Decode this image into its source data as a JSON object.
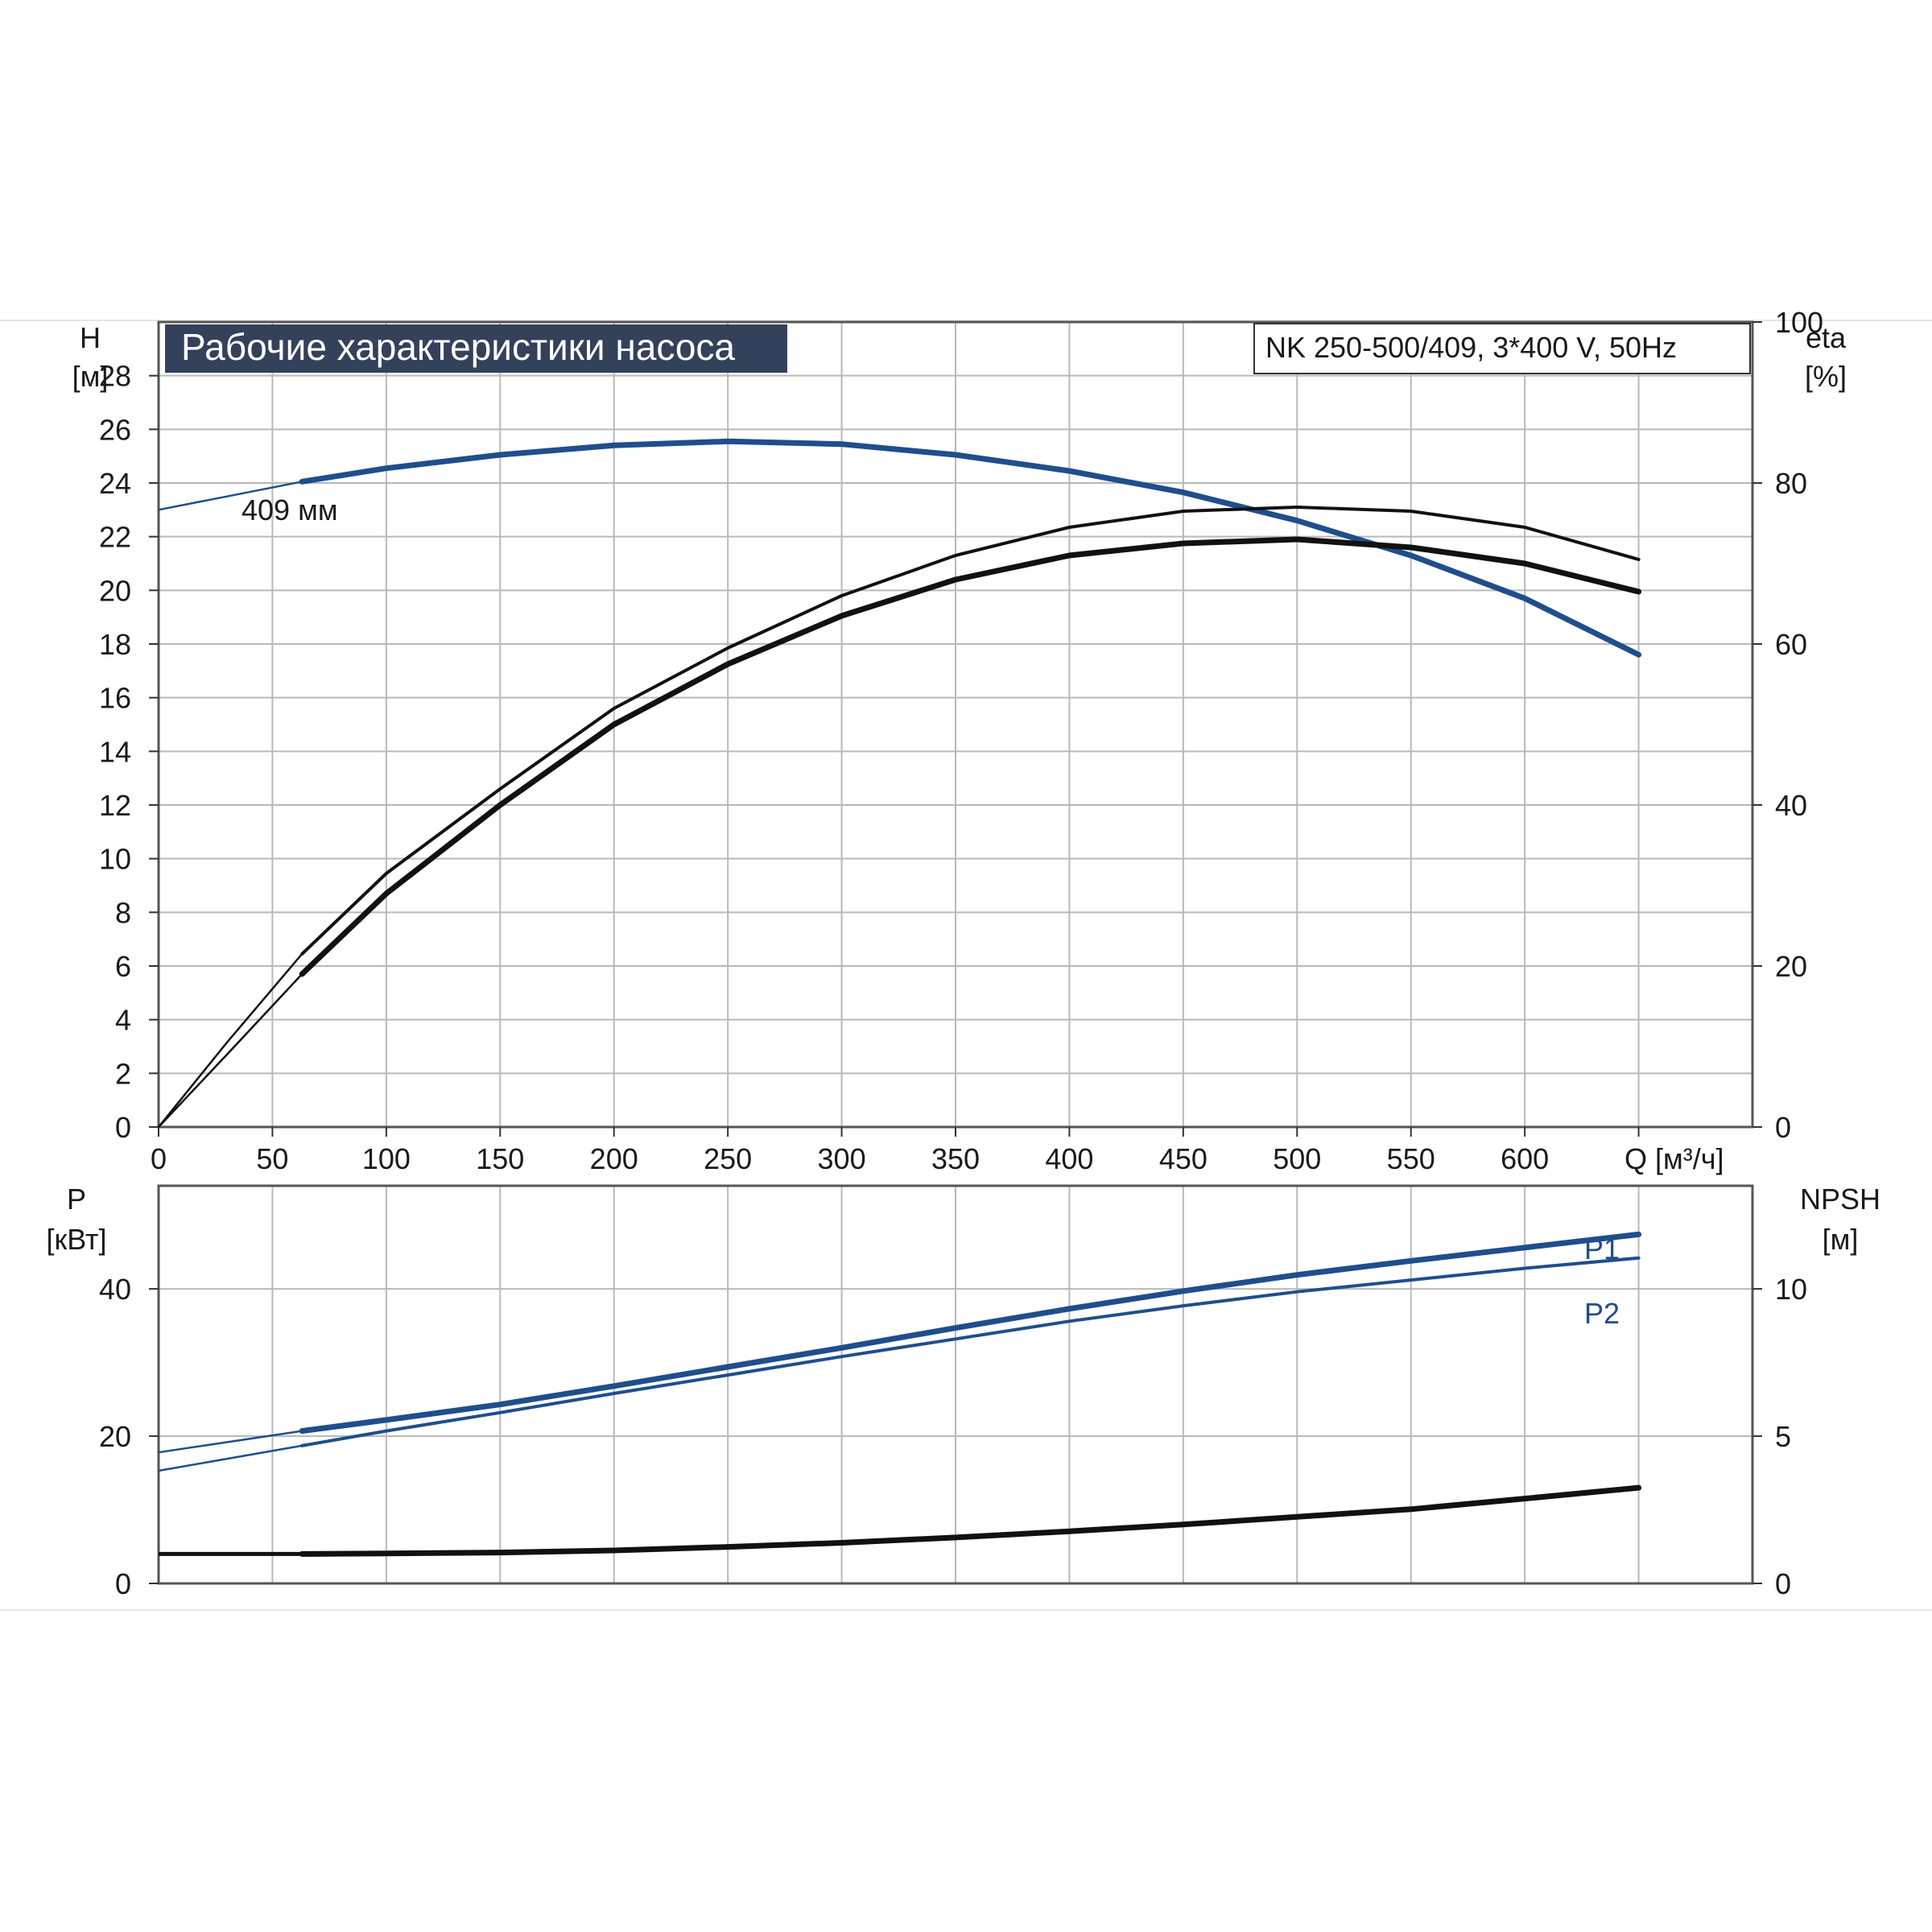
{
  "chart_data": [
    {
      "type": "line",
      "title": "Рабочие характеристики насоса",
      "subtitle": "NK 250-500/409, 3*400 V, 50Hz",
      "xlabel": "Q [м³/ч]",
      "ylabel_left": [
        "H",
        "[м]"
      ],
      "ylabel_right": [
        "eta",
        "[%]"
      ],
      "xlim": [
        0,
        700
      ],
      "ylim_left": [
        0,
        30
      ],
      "ylim_right": [
        0,
        100
      ],
      "x_ticks": [
        "0",
        "50",
        "100",
        "150",
        "200",
        "250",
        "300",
        "350",
        "400",
        "450",
        "500",
        "550",
        "600"
      ],
      "y_ticks_left": [
        "0",
        "2",
        "4",
        "6",
        "8",
        "10",
        "12",
        "14",
        "16",
        "18",
        "20",
        "22",
        "24",
        "26",
        "28"
      ],
      "y_ticks_right": [
        "0",
        "20",
        "40",
        "60",
        "80",
        "100"
      ],
      "grid": true,
      "curve_annotation": "409 мм",
      "series": [
        {
          "axis": "left",
          "color": "#1f4e8c",
          "x": [
            0,
            30,
            63,
            100,
            150,
            200,
            250,
            300,
            350,
            400,
            450,
            500,
            550,
            600,
            650
          ],
          "values": [
            23.0,
            23.5,
            24.05,
            24.55,
            25.05,
            25.4,
            25.55,
            25.45,
            25.05,
            24.45,
            23.65,
            22.6,
            21.3,
            19.7,
            17.6
          ]
        },
        {
          "axis": "right",
          "color": "#111111",
          "x": [
            0,
            30,
            63,
            100,
            150,
            200,
            250,
            300,
            350,
            400,
            450,
            500,
            550,
            600,
            650
          ],
          "values": [
            0,
            9,
            19,
            29,
            40,
            50,
            57.5,
            63.5,
            68,
            71,
            72.5,
            73,
            72,
            70,
            66.5
          ]
        },
        {
          "axis": "right",
          "color": "#111111",
          "x": [
            0,
            30,
            63,
            100,
            150,
            200,
            250,
            300,
            350,
            400,
            450,
            500,
            550,
            600,
            650
          ],
          "values": [
            0,
            10.5,
            21.5,
            31.5,
            42,
            52,
            59.5,
            66,
            71,
            74.5,
            76.5,
            77,
            76.5,
            74.5,
            70.5
          ]
        }
      ]
    },
    {
      "type": "line",
      "xlim": [
        0,
        700
      ],
      "ylabel_left": [
        "P",
        "[кВт]"
      ],
      "ylabel_right": [
        "NPSH",
        "[м]"
      ],
      "ylim_left": [
        0,
        54
      ],
      "ylim_right": [
        0,
        13.5
      ],
      "y_ticks_left": [
        "0",
        "20",
        "40"
      ],
      "y_ticks_right": [
        "0",
        "5",
        "10"
      ],
      "grid": true,
      "series": [
        {
          "name": "P1",
          "axis": "left",
          "color": "#1f4e8c",
          "x": [
            0,
            63,
            100,
            150,
            200,
            250,
            300,
            350,
            400,
            450,
            500,
            550,
            600,
            650
          ],
          "values": [
            17.8,
            20.7,
            22.2,
            24.3,
            26.8,
            29.4,
            32.0,
            34.7,
            37.3,
            39.7,
            41.9,
            43.8,
            45.6,
            47.4
          ]
        },
        {
          "name": "P2",
          "axis": "left",
          "color": "#1f4e8c",
          "x": [
            0,
            63,
            100,
            150,
            200,
            250,
            300,
            350,
            400,
            450,
            500,
            550,
            600,
            650
          ],
          "values": [
            15.3,
            18.7,
            20.7,
            23.2,
            25.8,
            28.3,
            30.8,
            33.2,
            35.6,
            37.7,
            39.6,
            41.2,
            42.8,
            44.2
          ]
        },
        {
          "axis": "right",
          "color": "#111111",
          "x": [
            0,
            63,
            100,
            150,
            200,
            250,
            300,
            350,
            400,
            450,
            500,
            550,
            600,
            650
          ],
          "values": [
            1.0,
            1.0,
            1.02,
            1.05,
            1.12,
            1.24,
            1.38,
            1.56,
            1.77,
            2.0,
            2.26,
            2.52,
            2.88,
            3.25
          ]
        }
      ]
    }
  ]
}
